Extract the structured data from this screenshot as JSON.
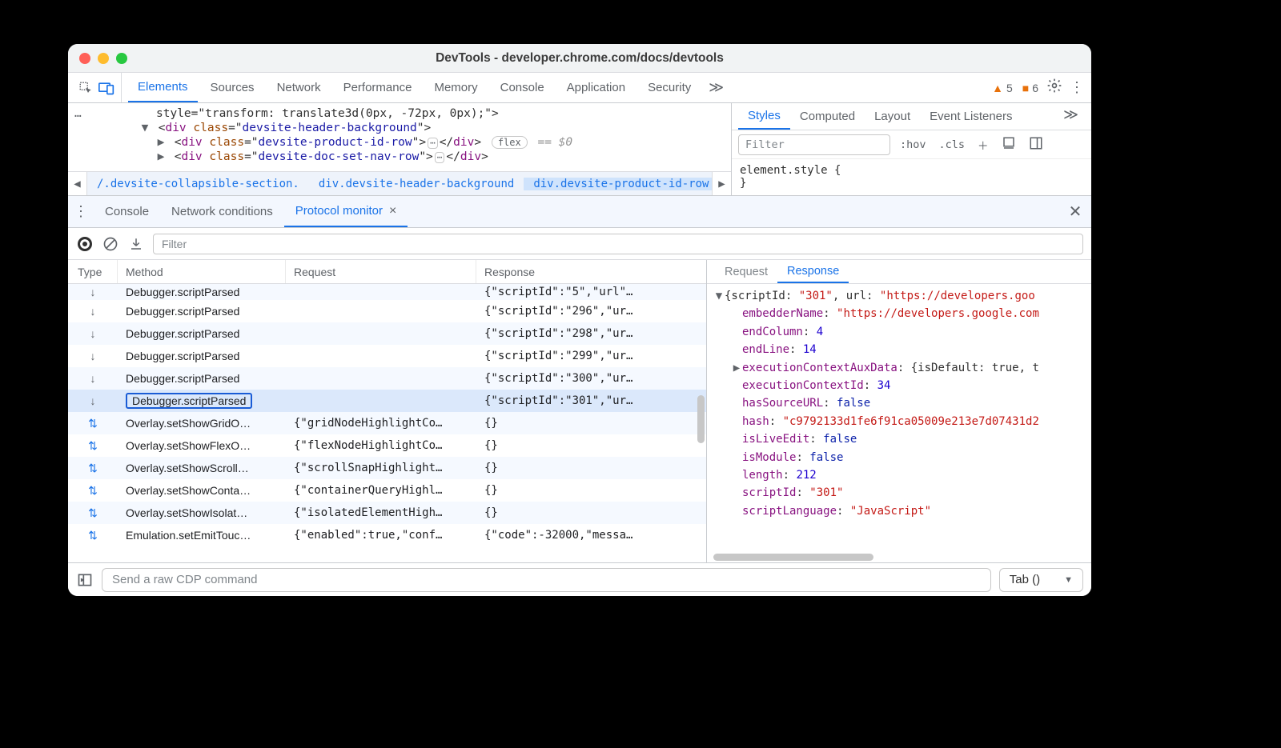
{
  "window": {
    "title": "DevTools - developer.chrome.com/docs/devtools"
  },
  "mainTabs": {
    "items": [
      "Elements",
      "Sources",
      "Network",
      "Performance",
      "Memory",
      "Console",
      "Application",
      "Security"
    ],
    "activeIndex": 0,
    "warnings": "5",
    "issues": "6"
  },
  "dom": {
    "line0": "style=\"transform: translate3d(0px, -72px, 0px);\">",
    "line1_tag": "div",
    "line1_attr": "class",
    "line1_val": "devsite-header-background",
    "line2_tag": "div",
    "line2_attr": "class",
    "line2_val": "devsite-product-id-row",
    "flexLabel": "flex",
    "eqZero": "== $0",
    "line3_tag": "div",
    "line3_attr": "class",
    "line3_val": "devsite-doc-set-nav-row"
  },
  "breadcrumbs": {
    "a": "/.devsite-collapsible-section.",
    "b": "div.devsite-header-background",
    "c": "div.devsite-product-id-row"
  },
  "stylesTabs": {
    "items": [
      "Styles",
      "Computed",
      "Layout",
      "Event Listeners"
    ],
    "activeIndex": 0
  },
  "stylesFilter": {
    "placeholder": "Filter",
    "hov": ":hov",
    "cls": ".cls"
  },
  "stylesBody": {
    "l1": "element.style {",
    "l2": "}"
  },
  "drawerTabs": {
    "items": [
      "Console",
      "Network conditions",
      "Protocol monitor"
    ],
    "activeIndex": 2
  },
  "pm": {
    "filterPlaceholder": "Filter",
    "headers": {
      "type": "Type",
      "method": "Method",
      "request": "Request",
      "response": "Response"
    },
    "rows": [
      {
        "dir": "down",
        "method": "Debugger.scriptParsed",
        "req": "",
        "res": "{\"scriptId\":\"5\",\"url\"…",
        "sel": false,
        "top": true
      },
      {
        "dir": "down",
        "method": "Debugger.scriptParsed",
        "req": "",
        "res": "{\"scriptId\":\"296\",\"ur…",
        "sel": false
      },
      {
        "dir": "down",
        "method": "Debugger.scriptParsed",
        "req": "",
        "res": "{\"scriptId\":\"298\",\"ur…",
        "sel": false
      },
      {
        "dir": "down",
        "method": "Debugger.scriptParsed",
        "req": "",
        "res": "{\"scriptId\":\"299\",\"ur…",
        "sel": false
      },
      {
        "dir": "down",
        "method": "Debugger.scriptParsed",
        "req": "",
        "res": "{\"scriptId\":\"300\",\"ur…",
        "sel": false
      },
      {
        "dir": "down",
        "method": "Debugger.scriptParsed",
        "req": "",
        "res": "{\"scriptId\":\"301\",\"ur…",
        "sel": true
      },
      {
        "dir": "bi",
        "method": "Overlay.setShowGridO…",
        "req": "{\"gridNodeHighlightCo…",
        "res": "{}",
        "sel": false
      },
      {
        "dir": "bi",
        "method": "Overlay.setShowFlexO…",
        "req": "{\"flexNodeHighlightCo…",
        "res": "{}",
        "sel": false
      },
      {
        "dir": "bi",
        "method": "Overlay.setShowScroll…",
        "req": "{\"scrollSnapHighlight…",
        "res": "{}",
        "sel": false
      },
      {
        "dir": "bi",
        "method": "Overlay.setShowConta…",
        "req": "{\"containerQueryHighl…",
        "res": "{}",
        "sel": false
      },
      {
        "dir": "bi",
        "method": "Overlay.setShowIsolat…",
        "req": "{\"isolatedElementHigh…",
        "res": "{}",
        "sel": false
      },
      {
        "dir": "bi",
        "method": "Emulation.setEmitTouc…",
        "req": "{\"enabled\":true,\"conf…",
        "res": "{\"code\":-32000,\"messa…",
        "sel": false
      }
    ]
  },
  "detailTabs": {
    "items": [
      "Request",
      "Response"
    ],
    "activeIndex": 1
  },
  "jsonview": {
    "head_pre": "{scriptId: ",
    "head_v1": "\"301\"",
    "head_mid": ", url: ",
    "head_v2": "\"https://developers.goo",
    "lines": [
      {
        "k": "embedderName",
        "v": "\"https://developers.google.com",
        "t": "str"
      },
      {
        "k": "endColumn",
        "v": "4",
        "t": "num"
      },
      {
        "k": "endLine",
        "v": "14",
        "t": "num"
      },
      {
        "k": "executionContextAuxData",
        "v": "{isDefault: true, t",
        "t": "obj",
        "arrow": true
      },
      {
        "k": "executionContextId",
        "v": "34",
        "t": "num"
      },
      {
        "k": "hasSourceURL",
        "v": "false",
        "t": "bool"
      },
      {
        "k": "hash",
        "v": "\"c9792133d1fe6f91ca05009e213e7d07431d2",
        "t": "str"
      },
      {
        "k": "isLiveEdit",
        "v": "false",
        "t": "bool"
      },
      {
        "k": "isModule",
        "v": "false",
        "t": "bool"
      },
      {
        "k": "length",
        "v": "212",
        "t": "num"
      },
      {
        "k": "scriptId",
        "v": "\"301\"",
        "t": "str"
      },
      {
        "k": "scriptLanguage",
        "v": "\"JavaScript\"",
        "t": "str"
      }
    ]
  },
  "footer": {
    "placeholder": "Send a raw CDP command",
    "select": "Tab ()"
  }
}
